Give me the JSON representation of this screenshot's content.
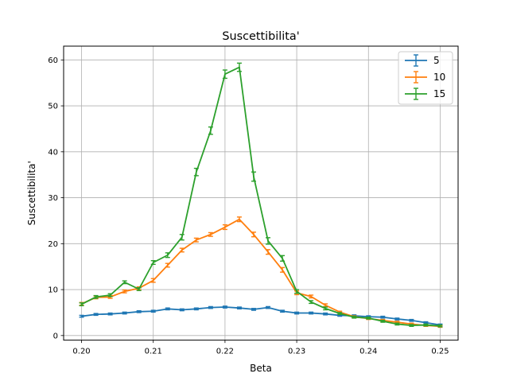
{
  "chart_data": {
    "type": "line",
    "title": "Suscettibilita'",
    "xlabel": "Beta",
    "ylabel": "Suscettibilita'",
    "xlim": [
      0.1975,
      0.2525
    ],
    "ylim": [
      -1,
      63
    ],
    "xticks": [
      0.2,
      0.21,
      0.22,
      0.23,
      0.24,
      0.25
    ],
    "xtick_labels": [
      "0.20",
      "0.21",
      "0.22",
      "0.23",
      "0.24",
      "0.25"
    ],
    "yticks": [
      0,
      10,
      20,
      30,
      40,
      50,
      60
    ],
    "ytick_labels": [
      "0",
      "10",
      "20",
      "30",
      "40",
      "50",
      "60"
    ],
    "grid": true,
    "legend_position": "top-right",
    "x": [
      0.2,
      0.202,
      0.204,
      0.206,
      0.208,
      0.21,
      0.212,
      0.214,
      0.216,
      0.218,
      0.22,
      0.222,
      0.224,
      0.226,
      0.228,
      0.23,
      0.232,
      0.234,
      0.236,
      0.238,
      0.24,
      0.242,
      0.244,
      0.246,
      0.248,
      0.25
    ],
    "series": [
      {
        "name": "5",
        "color": "#1f77b4",
        "values": [
          4.2,
          4.6,
          4.7,
          4.9,
          5.2,
          5.3,
          5.8,
          5.6,
          5.8,
          6.1,
          6.2,
          6.0,
          5.7,
          6.1,
          5.3,
          4.9,
          4.9,
          4.7,
          4.4,
          4.3,
          4.1,
          4.0,
          3.6,
          3.3,
          2.8,
          2.3
        ],
        "errors": [
          0.2,
          0.2,
          0.2,
          0.2,
          0.2,
          0.2,
          0.2,
          0.2,
          0.2,
          0.2,
          0.2,
          0.2,
          0.2,
          0.2,
          0.2,
          0.2,
          0.2,
          0.2,
          0.2,
          0.2,
          0.2,
          0.2,
          0.2,
          0.2,
          0.2,
          0.2
        ]
      },
      {
        "name": "10",
        "color": "#ff7f0e",
        "values": [
          6.9,
          8.3,
          8.4,
          9.6,
          10.3,
          12.0,
          15.3,
          18.6,
          20.8,
          22.0,
          23.6,
          25.3,
          22.0,
          18.2,
          14.3,
          9.3,
          8.5,
          6.6,
          5.1,
          4.1,
          3.7,
          3.3,
          2.9,
          2.5,
          2.2,
          2.0
        ],
        "errors": [
          0.3,
          0.3,
          0.3,
          0.3,
          0.3,
          0.4,
          0.4,
          0.4,
          0.4,
          0.4,
          0.5,
          0.5,
          0.5,
          0.5,
          0.5,
          0.4,
          0.3,
          0.3,
          0.2,
          0.2,
          0.2,
          0.2,
          0.2,
          0.2,
          0.2,
          0.2
        ]
      },
      {
        "name": "15",
        "color": "#2ca02c",
        "values": [
          6.8,
          8.4,
          8.8,
          11.6,
          10.1,
          15.9,
          17.5,
          21.4,
          35.6,
          44.6,
          56.9,
          58.4,
          34.6,
          20.6,
          16.8,
          9.6,
          7.3,
          5.9,
          4.8,
          4.0,
          3.8,
          3.1,
          2.5,
          2.2,
          2.3,
          2.1
        ],
        "errors": [
          0.3,
          0.3,
          0.3,
          0.3,
          0.3,
          0.4,
          0.5,
          0.6,
          0.8,
          0.8,
          0.9,
          0.9,
          1.0,
          0.7,
          0.6,
          0.4,
          0.3,
          0.3,
          0.2,
          0.2,
          0.2,
          0.2,
          0.2,
          0.2,
          0.2,
          0.2
        ]
      }
    ]
  }
}
